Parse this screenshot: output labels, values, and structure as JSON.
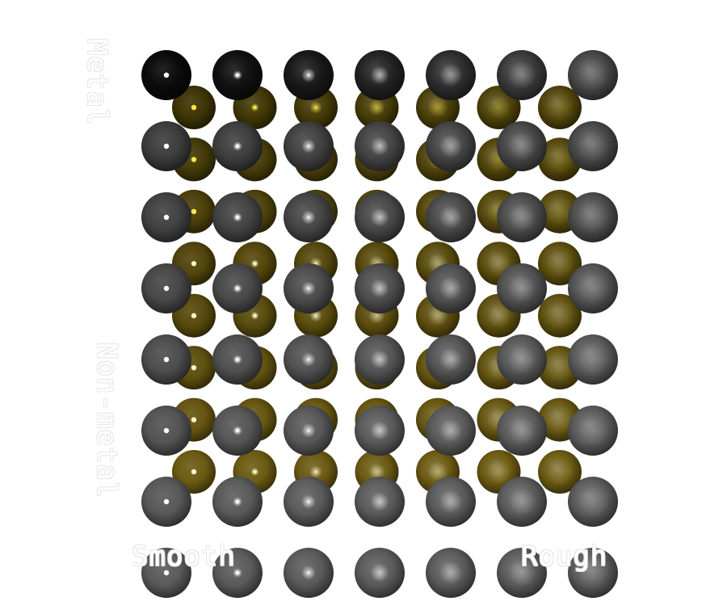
{
  "labels": {
    "metal": "Metal",
    "non_metal": "Non-metal",
    "smooth": "Smooth",
    "rough": "Rough"
  },
  "colors": {
    "gray_base": "#5a5a5a",
    "metal_gray": "#0a0a0a",
    "gold_base": "#6b5a12",
    "gold_metal": "#2a2400",
    "gold_specular": "#ffea40",
    "gray_specular": "#ffffff",
    "label_outline": "#e6e6e6"
  },
  "grid": {
    "rows": 8,
    "columns": 7,
    "row_axis": "metalness (top = Metal, bottom = Non-metal)",
    "column_axis": "roughness (left = Smooth, right = Rough)"
  }
}
